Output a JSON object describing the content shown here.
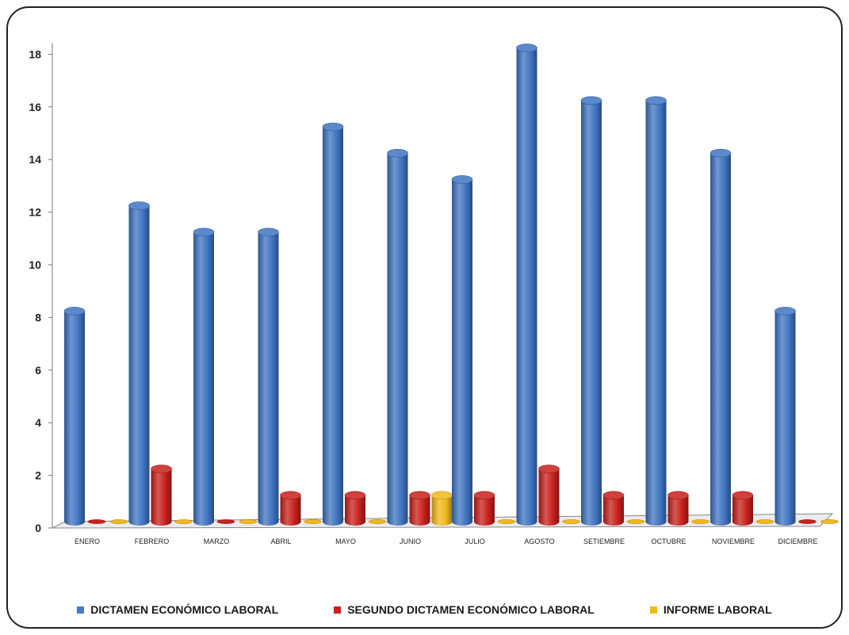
{
  "chart_data": {
    "type": "bar",
    "title": "",
    "xlabel": "",
    "ylabel": "",
    "ylim": [
      0,
      18
    ],
    "yticks": [
      0,
      2,
      4,
      6,
      8,
      10,
      12,
      14,
      16,
      18
    ],
    "grid": false,
    "legend_position": "bottom",
    "style": "3d-cylinder",
    "categories": [
      "ENERO",
      "FEBRERO",
      "MARZO",
      "ABRIL",
      "MAYO",
      "JUNIO",
      "JULIO",
      "AGOSTO",
      "SETIEMBRE",
      "OCTUBRE",
      "NOVIEMBRE",
      "DICIEMBRE"
    ],
    "series": [
      {
        "name": "DICTAMEN ECONÓMICO LABORAL",
        "color": "#3f74c2",
        "values": [
          8,
          12,
          11,
          11,
          15,
          14,
          13,
          18,
          16,
          16,
          14,
          8
        ]
      },
      {
        "name": "SEGUNDO DICTAMEN ECONÓMICO LABORAL",
        "color": "#c8201c",
        "values": [
          0,
          2,
          0,
          1,
          1,
          1,
          1,
          2,
          1,
          1,
          1,
          0
        ]
      },
      {
        "name": "INFORME LABORAL",
        "color": "#f2b81b",
        "values": [
          0,
          0,
          0,
          0,
          0,
          1,
          0,
          0,
          0,
          0,
          0,
          0
        ]
      }
    ]
  }
}
